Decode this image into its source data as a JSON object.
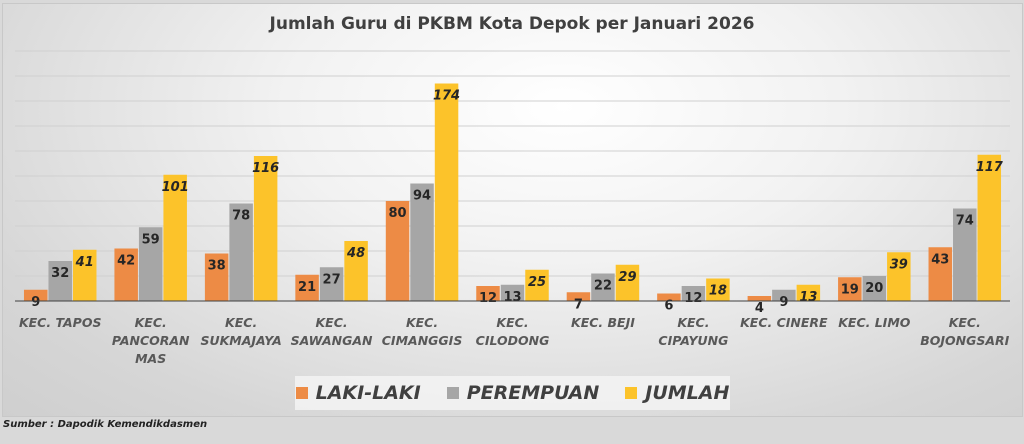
{
  "chart_data": {
    "type": "bar",
    "title": "Jumlah Guru di PKBM Kota Depok per Januari 2026",
    "categories": [
      [
        "KEC. TAPOS"
      ],
      [
        "KEC.",
        "PANCORAN",
        "MAS"
      ],
      [
        "KEC.",
        "SUKMAJAYA"
      ],
      [
        "KEC.",
        "SAWANGAN"
      ],
      [
        "KEC.",
        "CIMANGGIS"
      ],
      [
        "KEC.",
        "CILODONG"
      ],
      [
        "KEC. BEJI"
      ],
      [
        "KEC.",
        "CIPAYUNG"
      ],
      [
        "KEC. CINERE"
      ],
      [
        "KEC. LIMO"
      ],
      [
        "KEC.",
        "BOJONGSARI"
      ]
    ],
    "series": [
      {
        "name": "LAKI-LAKI",
        "color": "#ed8b45",
        "values": [
          9,
          42,
          38,
          21,
          80,
          12,
          7,
          6,
          4,
          19,
          43
        ]
      },
      {
        "name": "PEREMPUAN",
        "color": "#a6a6a6",
        "values": [
          32,
          59,
          78,
          27,
          94,
          13,
          22,
          12,
          9,
          20,
          74
        ]
      },
      {
        "name": "JUMLAH",
        "color": "#fcc32a",
        "values": [
          41,
          101,
          116,
          48,
          174,
          25,
          29,
          18,
          13,
          39,
          117
        ]
      }
    ],
    "ylim": [
      0,
      200
    ],
    "grid": true,
    "legend": "bottom",
    "xlabel": "",
    "ylabel": ""
  },
  "source": "Sumber : Dapodik Kemendikdasmen"
}
